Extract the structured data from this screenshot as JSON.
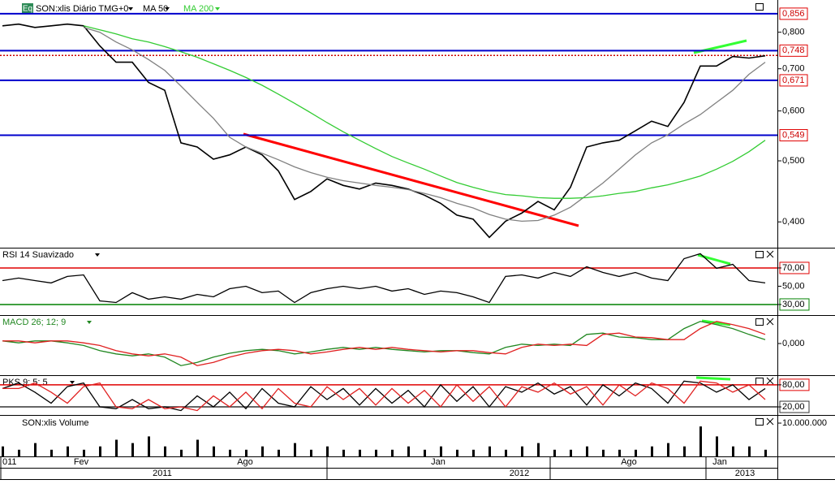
{
  "chart_data": [
    {
      "type": "line",
      "badge": "Eq",
      "title": "SON:xlis Diário TMG+0",
      "log_scale": true,
      "ylim": [
        0.364,
        0.9
      ],
      "yticks": [
        {
          "value": 0.8,
          "label": "0,800"
        },
        {
          "value": 0.7,
          "label": "0,700"
        },
        {
          "value": 0.6,
          "label": "0,600"
        },
        {
          "value": 0.5,
          "label": "0,500"
        },
        {
          "value": 0.4,
          "label": "0,400"
        }
      ],
      "levels": [
        {
          "value": 0.856,
          "label": "0,856"
        },
        {
          "value": 0.748,
          "label": "0,748"
        },
        {
          "value": 0.671,
          "label": "0,671"
        },
        {
          "value": 0.549,
          "label": "0,549"
        }
      ],
      "level_color": "#0000cc",
      "last_price": 0.735,
      "last_price_color": "#cc0000",
      "series": [
        {
          "color": "#000000",
          "values": [
            0.819,
            0.824,
            0.814,
            0.819,
            0.824,
            0.819,
            0.761,
            0.717,
            0.717,
            0.666,
            0.647,
            0.534,
            0.526,
            0.503,
            0.511,
            0.526,
            0.511,
            0.482,
            0.434,
            0.447,
            0.468,
            0.457,
            0.451,
            0.461,
            0.457,
            0.451,
            0.441,
            0.428,
            0.41,
            0.404,
            0.378,
            0.401,
            0.413,
            0.431,
            0.418,
            0.454,
            0.526,
            0.534,
            0.539,
            0.558,
            0.578,
            0.567,
            0.619,
            0.707,
            0.707,
            0.732,
            0.728,
            0.734
          ]
        },
        {
          "name": "MA 50",
          "color": "#808080",
          "values": [
            null,
            null,
            null,
            null,
            null,
            0.814,
            0.8,
            0.772,
            0.75,
            0.724,
            0.696,
            0.657,
            0.619,
            0.584,
            0.545,
            0.526,
            0.514,
            0.502,
            0.489,
            0.479,
            0.471,
            0.465,
            0.461,
            0.457,
            0.454,
            0.45,
            0.444,
            0.437,
            0.428,
            0.421,
            0.411,
            0.404,
            0.401,
            0.402,
            0.41,
            0.422,
            0.441,
            0.461,
            0.485,
            0.511,
            0.534,
            0.55,
            0.572,
            0.592,
            0.619,
            0.647,
            0.686,
            0.717
          ]
        },
        {
          "name": "MA 200",
          "color": "#33cc33",
          "values": [
            null,
            null,
            null,
            null,
            null,
            0.819,
            0.807,
            0.795,
            0.781,
            0.772,
            0.759,
            0.745,
            0.73,
            0.713,
            0.696,
            0.678,
            0.659,
            0.638,
            0.617,
            0.596,
            0.575,
            0.556,
            0.539,
            0.523,
            0.508,
            0.496,
            0.485,
            0.473,
            0.462,
            0.454,
            0.447,
            0.442,
            0.44,
            0.437,
            0.436,
            0.436,
            0.437,
            0.44,
            0.444,
            0.447,
            0.453,
            0.458,
            0.465,
            0.473,
            0.485,
            0.499,
            0.517,
            0.539
          ]
        }
      ]
    },
    {
      "type": "line",
      "title": "RSI 14 Suavizado",
      "ylim": [
        18.4,
        91.3
      ],
      "yticks": [
        {
          "value": 70,
          "label": "70,00"
        },
        {
          "value": 50,
          "label": "50,00"
        },
        {
          "value": 30,
          "label": "30,00"
        }
      ],
      "tick_line_colors": [
        "#e00000",
        null,
        "#008000"
      ],
      "series": [
        {
          "color": "#000000",
          "values": [
            56.2,
            58.9,
            56.2,
            53.6,
            60.7,
            62.4,
            34.0,
            32.2,
            42.9,
            35.8,
            38.4,
            35.8,
            41.1,
            38.4,
            47.3,
            50.0,
            42.9,
            44.7,
            32.2,
            42.9,
            47.3,
            50.0,
            47.3,
            50.0,
            44.7,
            47.3,
            41.1,
            44.7,
            42.9,
            38.4,
            32.2,
            60.7,
            62.4,
            58.9,
            65.1,
            60.7,
            71.3,
            65.1,
            60.7,
            65.1,
            58.9,
            56.2,
            80.2,
            85.6,
            69.6,
            74.0,
            56.2,
            53.6
          ]
        }
      ]
    },
    {
      "type": "line",
      "title": "MACD 26; 12; 9",
      "ylim": [
        -0.0475,
        0.0425
      ],
      "yticks": [
        {
          "value": 0,
          "label": "0,000"
        }
      ],
      "series": [
        {
          "color": "#228822",
          "values": [
            0.004,
            0.001,
            0.004,
            0.004,
            0.001,
            -0.003,
            -0.011,
            -0.016,
            -0.019,
            -0.016,
            -0.021,
            -0.034,
            -0.029,
            -0.021,
            -0.015,
            -0.011,
            -0.009,
            -0.011,
            -0.016,
            -0.013,
            -0.009,
            -0.006,
            -0.009,
            -0.006,
            -0.009,
            -0.011,
            -0.013,
            -0.011,
            -0.011,
            -0.014,
            -0.016,
            -0.006,
            -0.001,
            -0.003,
            -0.001,
            -0.003,
            0.014,
            0.016,
            0.01,
            0.009,
            0.006,
            0.006,
            0.023,
            0.034,
            0.029,
            0.023,
            0.014,
            0.006
          ]
        },
        {
          "color": "#e02020",
          "values": [
            0.004,
            0.004,
            0.001,
            0.004,
            0.004,
            0.001,
            -0.003,
            -0.011,
            -0.016,
            -0.019,
            -0.016,
            -0.021,
            -0.034,
            -0.029,
            -0.021,
            -0.015,
            -0.011,
            -0.009,
            -0.011,
            -0.016,
            -0.013,
            -0.009,
            -0.006,
            -0.009,
            -0.006,
            -0.009,
            -0.011,
            -0.013,
            -0.011,
            -0.011,
            -0.014,
            -0.016,
            -0.006,
            -0.001,
            -0.003,
            -0.001,
            -0.003,
            0.014,
            0.016,
            0.01,
            0.009,
            0.006,
            0.006,
            0.023,
            0.034,
            0.029,
            0.023,
            0.014
          ]
        }
      ]
    },
    {
      "type": "line",
      "title": "PKS 9; 5; 5",
      "ylim": [
        -2,
        104
      ],
      "yticks": [
        {
          "value": 80,
          "label": "80,00"
        },
        {
          "value": 20,
          "label": "20,00"
        }
      ],
      "tick_line_colors": [
        "#e00000",
        "#333333"
      ],
      "series": [
        {
          "color": "#000000",
          "values": [
            70,
            85,
            60,
            30,
            75,
            85,
            20,
            15,
            40,
            15,
            20,
            10,
            50,
            20,
            60,
            15,
            70,
            30,
            20,
            75,
            40,
            70,
            25,
            70,
            30,
            65,
            20,
            80,
            35,
            75,
            20,
            75,
            60,
            85,
            55,
            75,
            25,
            80,
            50,
            85,
            70,
            30,
            90,
            85,
            60,
            80,
            40,
            70
          ]
        },
        {
          "color": "#e02020",
          "values": [
            70,
            70,
            85,
            60,
            30,
            75,
            85,
            20,
            15,
            40,
            15,
            20,
            10,
            50,
            20,
            60,
            15,
            70,
            30,
            20,
            75,
            40,
            70,
            25,
            70,
            30,
            65,
            20,
            80,
            35,
            75,
            20,
            75,
            60,
            85,
            55,
            75,
            25,
            80,
            50,
            85,
            70,
            30,
            90,
            85,
            60,
            80,
            40
          ]
        }
      ]
    },
    {
      "type": "bar",
      "title": "SON:xlis Volume",
      "ylim": [
        0,
        12200000
      ],
      "yticks": [
        {
          "value": 10000000,
          "label": "10.000.000"
        }
      ],
      "color": "#000000",
      "values": [
        3000000,
        2000000,
        4000000,
        2000000,
        3000000,
        2000000,
        3000000,
        5000000,
        4000000,
        6000000,
        3000000,
        2000000,
        5000000,
        3000000,
        2000000,
        2000000,
        3000000,
        2000000,
        4000000,
        2000000,
        3000000,
        2000000,
        2000000,
        2000000,
        2000000,
        3000000,
        2000000,
        3000000,
        2000000,
        2000000,
        3000000,
        2000000,
        3000000,
        4000000,
        2000000,
        2000000,
        3000000,
        2000000,
        2000000,
        2000000,
        3000000,
        4000000,
        3000000,
        9000000,
        6000000,
        3000000,
        3000000,
        2000000
      ]
    }
  ],
  "time_axis": {
    "months": [
      "011",
      "Fev",
      "Ago",
      "Jan",
      "Ago",
      "Jan"
    ],
    "years": [
      "2011",
      "2012",
      "2013"
    ]
  }
}
